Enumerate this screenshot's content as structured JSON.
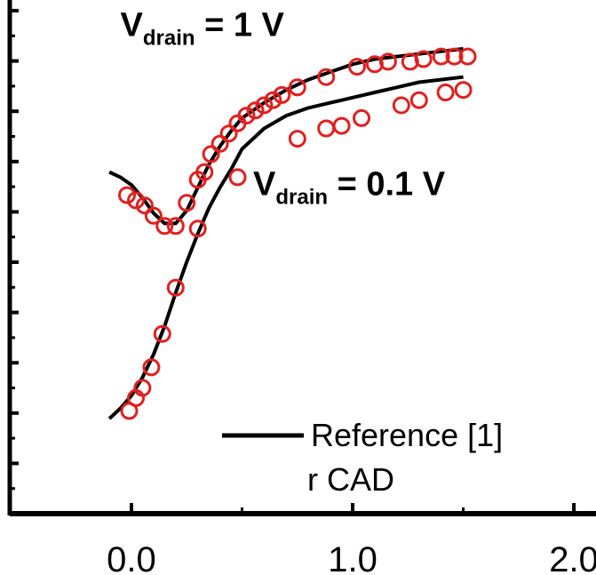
{
  "chart_data": {
    "type": "line",
    "title": "",
    "xlabel": "",
    "ylabel": "",
    "xlim": [
      -0.55,
      2.1
    ],
    "ylim": [
      0,
      1
    ],
    "grid": false,
    "legend_position": "bottom-right",
    "x_ticks": [
      {
        "value": 0.0,
        "label": "0.0"
      },
      {
        "value": 1.0,
        "label": "1.0"
      },
      {
        "value": 2.0,
        "label": "2.0"
      }
    ],
    "annotations": [
      {
        "main": "V",
        "sub": "drain",
        "rest": " = 1 V",
        "x": -0.05,
        "y": 0.93
      },
      {
        "main": "V",
        "sub": "drain",
        "rest": " = 0.1 V",
        "x": 0.55,
        "y": 0.62
      }
    ],
    "legend": [
      {
        "label": "Reference [1]",
        "style": "line"
      },
      {
        "label": "r CAD",
        "style": "marker"
      }
    ],
    "series": [
      {
        "name": "Reference [1]",
        "style": "line",
        "color": "#000000",
        "groups": [
          {
            "label": "V_drain = 1 V",
            "points": [
              [
                -0.1,
                0.665
              ],
              [
                -0.05,
                0.655
              ],
              [
                0.0,
                0.64
              ],
              [
                0.05,
                0.615
              ],
              [
                0.1,
                0.585
              ],
              [
                0.15,
                0.565
              ],
              [
                0.2,
                0.565
              ],
              [
                0.25,
                0.59
              ],
              [
                0.3,
                0.635
              ],
              [
                0.35,
                0.68
              ],
              [
                0.4,
                0.715
              ],
              [
                0.45,
                0.745
              ],
              [
                0.5,
                0.77
              ],
              [
                0.6,
                0.8
              ],
              [
                0.7,
                0.825
              ],
              [
                0.8,
                0.845
              ],
              [
                0.9,
                0.86
              ],
              [
                1.0,
                0.875
              ],
              [
                1.1,
                0.885
              ],
              [
                1.2,
                0.89
              ],
              [
                1.3,
                0.895
              ],
              [
                1.4,
                0.9
              ],
              [
                1.5,
                0.905
              ]
            ]
          },
          {
            "label": "V_drain = 0.1 V",
            "points": [
              [
                -0.1,
                0.185
              ],
              [
                -0.05,
                0.205
              ],
              [
                0.0,
                0.23
              ],
              [
                0.05,
                0.265
              ],
              [
                0.1,
                0.31
              ],
              [
                0.15,
                0.365
              ],
              [
                0.2,
                0.43
              ],
              [
                0.25,
                0.49
              ],
              [
                0.3,
                0.545
              ],
              [
                0.35,
                0.595
              ],
              [
                0.4,
                0.635
              ],
              [
                0.45,
                0.67
              ],
              [
                0.5,
                0.71
              ],
              [
                0.6,
                0.75
              ],
              [
                0.7,
                0.775
              ],
              [
                0.8,
                0.79
              ],
              [
                0.9,
                0.8
              ],
              [
                1.0,
                0.81
              ],
              [
                1.1,
                0.82
              ],
              [
                1.2,
                0.83
              ],
              [
                1.3,
                0.84
              ],
              [
                1.4,
                0.845
              ],
              [
                1.5,
                0.85
              ]
            ]
          }
        ]
      },
      {
        "name": "r CAD",
        "style": "marker",
        "color": "#e02020",
        "groups": [
          {
            "label": "V_drain = 1 V",
            "points": [
              [
                -0.02,
                0.62
              ],
              [
                0.02,
                0.61
              ],
              [
                0.06,
                0.6
              ],
              [
                0.1,
                0.58
              ],
              [
                0.15,
                0.56
              ],
              [
                0.2,
                0.56
              ],
              [
                0.25,
                0.605
              ],
              [
                0.3,
                0.65
              ],
              [
                0.33,
                0.665
              ],
              [
                0.36,
                0.7
              ],
              [
                0.4,
                0.72
              ],
              [
                0.44,
                0.74
              ],
              [
                0.48,
                0.76
              ],
              [
                0.52,
                0.775
              ],
              [
                0.56,
                0.785
              ],
              [
                0.6,
                0.795
              ],
              [
                0.64,
                0.805
              ],
              [
                0.68,
                0.815
              ],
              [
                0.75,
                0.83
              ],
              [
                0.88,
                0.85
              ],
              [
                1.02,
                0.87
              ],
              [
                1.1,
                0.875
              ],
              [
                1.16,
                0.88
              ],
              [
                1.26,
                0.88
              ],
              [
                1.32,
                0.885
              ],
              [
                1.4,
                0.89
              ],
              [
                1.46,
                0.89
              ],
              [
                1.52,
                0.89
              ]
            ]
          },
          {
            "label": "V_drain = 0.1 V",
            "points": [
              [
                -0.01,
                0.2
              ],
              [
                0.02,
                0.225
              ],
              [
                0.05,
                0.245
              ],
              [
                0.09,
                0.285
              ],
              [
                0.14,
                0.35
              ],
              [
                0.2,
                0.44
              ],
              [
                0.3,
                0.555
              ],
              [
                0.48,
                0.655
              ],
              [
                0.75,
                0.73
              ],
              [
                0.88,
                0.75
              ],
              [
                0.95,
                0.755
              ],
              [
                1.04,
                0.77
              ],
              [
                1.22,
                0.795
              ],
              [
                1.3,
                0.805
              ],
              [
                1.42,
                0.82
              ],
              [
                1.5,
                0.825
              ]
            ]
          }
        ]
      }
    ]
  }
}
